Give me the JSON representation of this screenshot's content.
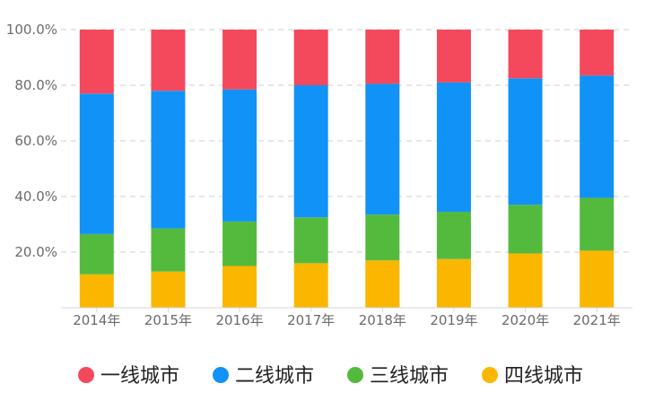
{
  "chart_data": {
    "type": "bar",
    "stacked": true,
    "categories": [
      "2014年",
      "2015年",
      "2016年",
      "2017年",
      "2018年",
      "2019年",
      "2020年",
      "2021年"
    ],
    "series": [
      {
        "name": "四线城市",
        "color": "#FBB700",
        "values": [
          12,
          13,
          15,
          16,
          17,
          17.5,
          19.5,
          20.5
        ]
      },
      {
        "name": "三线城市",
        "color": "#54BA3E",
        "values": [
          14.5,
          15.5,
          16,
          16.5,
          16.5,
          17,
          17.5,
          19
        ]
      },
      {
        "name": "二线城市",
        "color": "#1192F6",
        "values": [
          50.5,
          49.5,
          47.5,
          47.5,
          47,
          46.5,
          45.5,
          44
        ]
      },
      {
        "name": "一线城市",
        "color": "#F4495C",
        "values": [
          23,
          22,
          21.5,
          20,
          19.5,
          19,
          17.5,
          16.5
        ]
      }
    ],
    "yticks": [
      "20.0%",
      "40.0%",
      "60.0%",
      "80.0%",
      "100.0%"
    ],
    "ylim": [
      0,
      100
    ],
    "grid": true,
    "legend_position": "bottom",
    "legend_order": [
      "一线城市",
      "二线城市",
      "三线城市",
      "四线城市"
    ]
  }
}
